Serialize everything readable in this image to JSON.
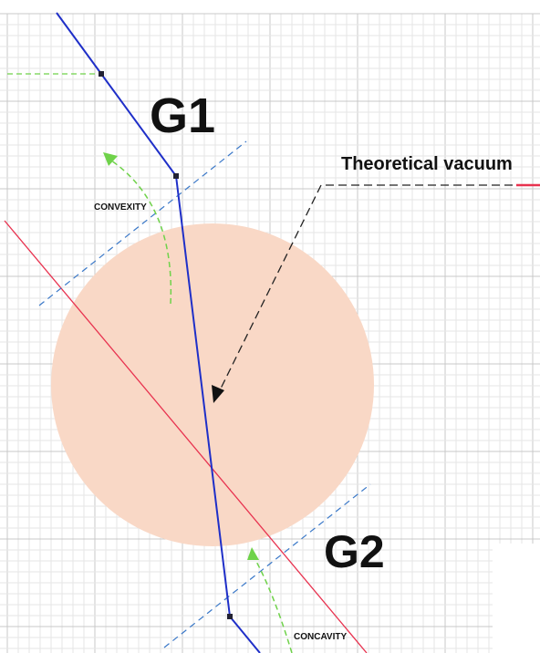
{
  "labels": {
    "g1": "G1",
    "g2": "G2",
    "vacuum": "Theoretical vacuum",
    "convexity": "CONVEXITY",
    "concavity": "CONCAVITY"
  }
}
